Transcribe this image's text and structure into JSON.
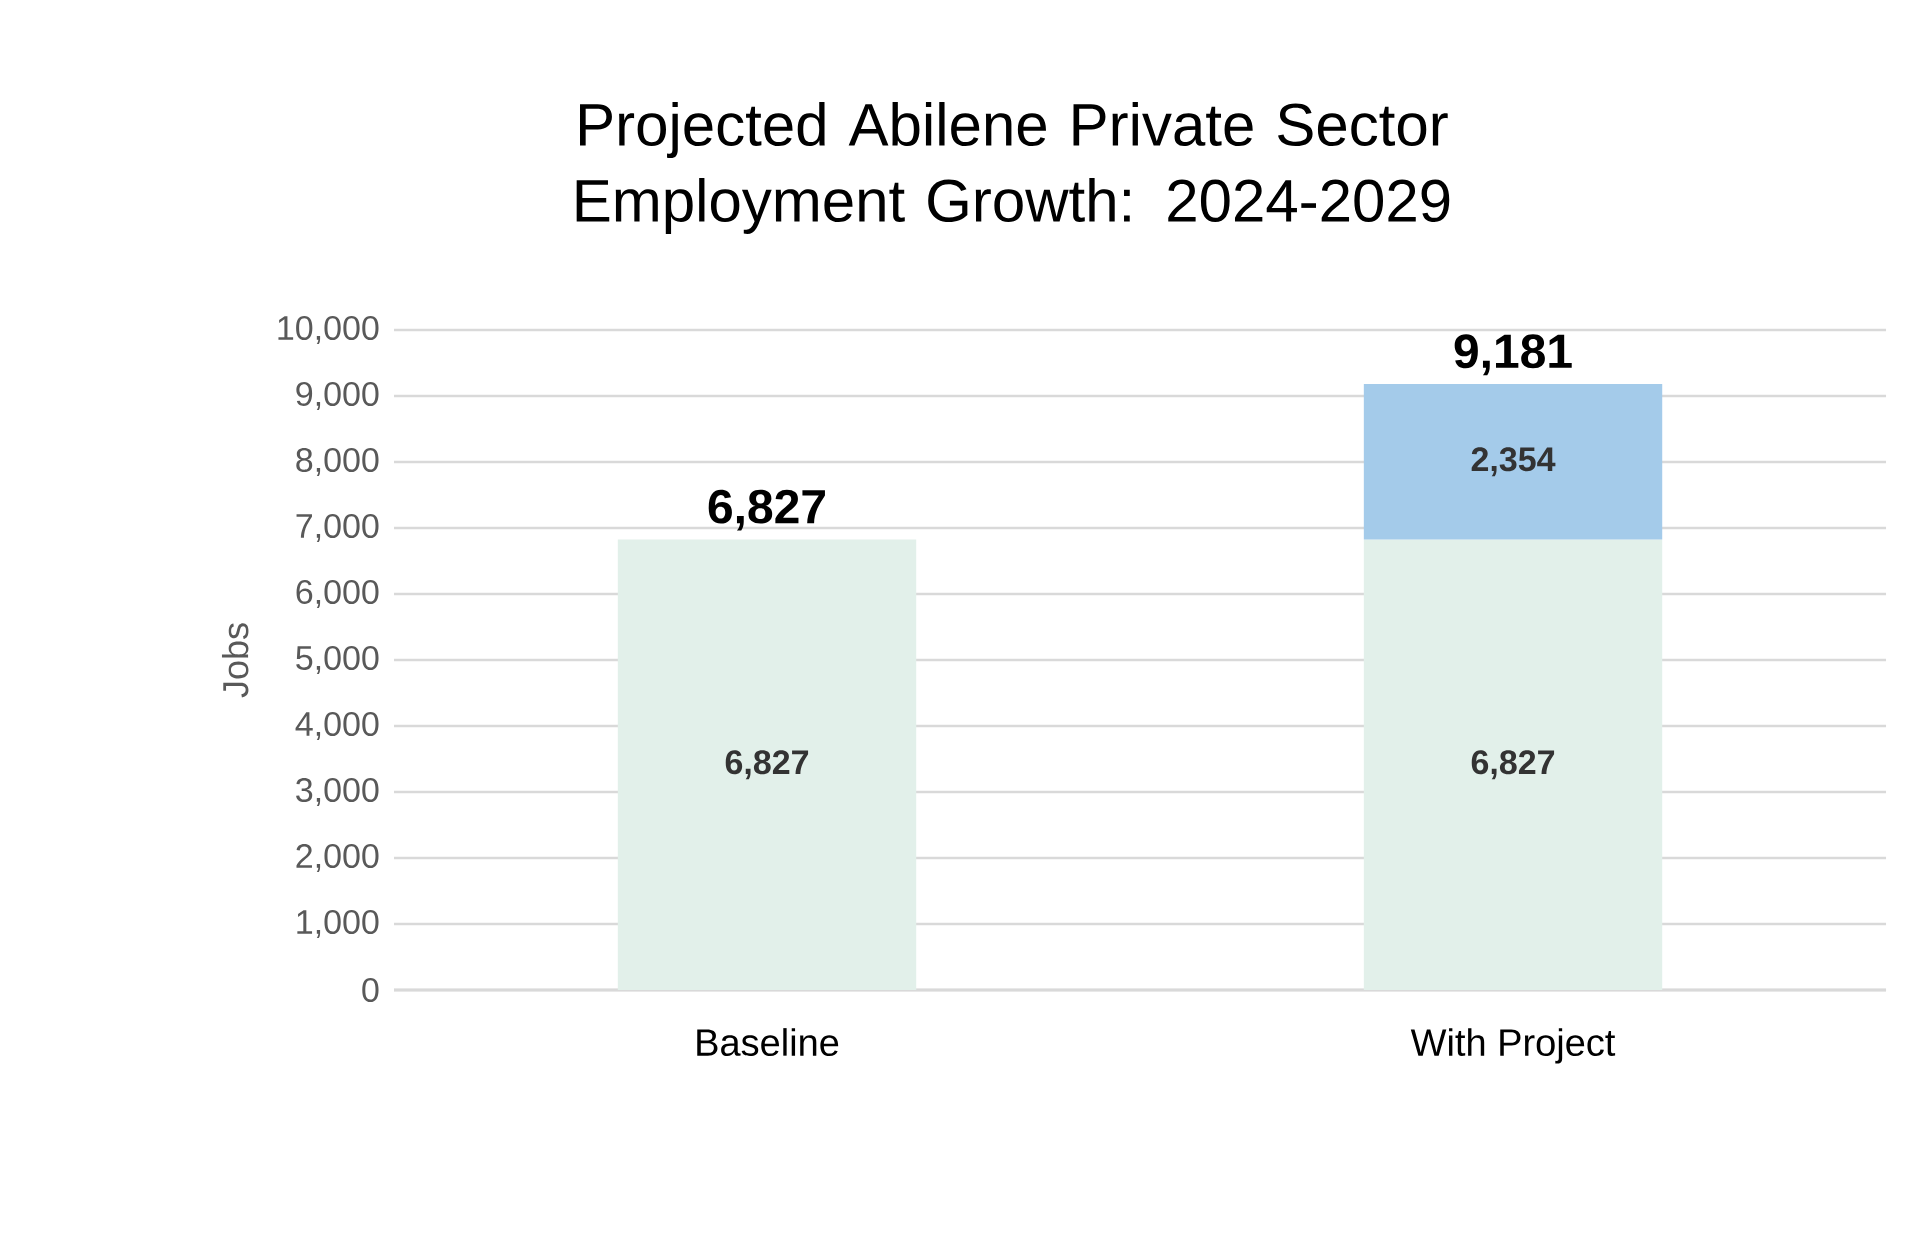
{
  "chart_data": {
    "type": "bar",
    "title": "Projected Abilene Private Sector Employment Growth: 2024-2029",
    "ylabel": "Jobs",
    "categories": [
      "Baseline",
      "With Project"
    ],
    "stacked": true,
    "series": [
      {
        "color": "#e2f0ea",
        "values": [
          6827,
          6827
        ],
        "value_labels": [
          "6,827",
          "6,827"
        ]
      },
      {
        "color": "#a4cbea",
        "values": [
          null,
          2354
        ],
        "value_labels": [
          null,
          "2,354"
        ]
      }
    ],
    "totals": [
      "6,827",
      "9,181"
    ],
    "ylim": [
      0,
      10000
    ],
    "yticks": [
      {
        "value": 0,
        "label": "0"
      },
      {
        "value": 1000,
        "label": "1,000"
      },
      {
        "value": 2000,
        "label": "2,000"
      },
      {
        "value": 3000,
        "label": "3,000"
      },
      {
        "value": 4000,
        "label": "4,000"
      },
      {
        "value": 5000,
        "label": "5,000"
      },
      {
        "value": 6000,
        "label": "6,000"
      },
      {
        "value": 7000,
        "label": "7,000"
      },
      {
        "value": 8000,
        "label": "8,000"
      },
      {
        "value": 9000,
        "label": "9,000"
      },
      {
        "value": 10000,
        "label": "10,000"
      }
    ],
    "grid": "y"
  }
}
